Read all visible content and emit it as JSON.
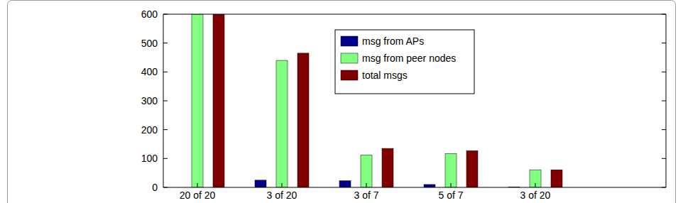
{
  "chart_data": {
    "type": "bar",
    "categories": [
      "20 of 20",
      "3 of 20",
      "3 of 7",
      "5 of 7",
      "3 of 20"
    ],
    "series": [
      {
        "name": "msg from APs",
        "color": "#00008f",
        "values": [
          0,
          25,
          23,
          10,
          1
        ]
      },
      {
        "name": "msg from peer nodes",
        "color": "#80ff80",
        "values": [
          600,
          440,
          112,
          117,
          61
        ]
      },
      {
        "name": "total msgs",
        "color": "#800000",
        "values": [
          600,
          465,
          135,
          127,
          61
        ]
      }
    ],
    "ylim": [
      0,
      600
    ],
    "yticks": [
      0,
      100,
      200,
      300,
      400,
      500,
      600
    ],
    "grid": false,
    "legend": "north"
  }
}
